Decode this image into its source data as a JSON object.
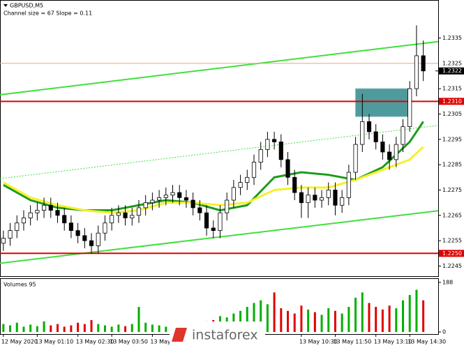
{
  "chart_data": {
    "type": "candlestick",
    "title": "GBPUSD,M5",
    "subtitle": "Channel size = 67 Slope = 0.11",
    "watermark": "instaforex",
    "open": [
      1.2254,
      1.2256,
      1.2259,
      1.2262,
      1.2264,
      1.2266,
      1.2267,
      1.2269,
      1.2267,
      1.2265,
      1.2262,
      1.2259,
      1.2257,
      1.2255,
      1.2253,
      1.2258,
      1.2262,
      1.2265,
      1.2266,
      1.2264,
      1.2265,
      1.2268,
      1.227,
      1.2271,
      1.2272,
      1.2273,
      1.2274,
      1.2272,
      1.2271,
      1.2268,
      1.2266,
      1.226,
      1.2259,
      1.2266,
      1.2271,
      1.2276,
      1.2278,
      1.228,
      1.2286,
      1.2291,
      1.2295,
      1.2294,
      1.2287,
      1.228,
      1.2274,
      1.227,
      1.2273,
      1.2271,
      1.2272,
      1.2275,
      1.2269,
      1.2272,
      1.2282,
      1.2293,
      1.2302,
      1.2298,
      1.2294,
      1.229,
      1.2287,
      1.2293,
      1.23,
      1.2315,
      1.2328
    ],
    "high": [
      1.2259,
      1.2262,
      1.2265,
      1.2267,
      1.2269,
      1.227,
      1.2272,
      1.2272,
      1.227,
      1.2268,
      1.2265,
      1.2262,
      1.226,
      1.2258,
      1.2261,
      1.2265,
      1.2268,
      1.2269,
      1.2269,
      1.2268,
      1.2271,
      1.2273,
      1.2274,
      1.2275,
      1.2276,
      1.2277,
      1.2277,
      1.2275,
      1.2274,
      1.2271,
      1.2269,
      1.2263,
      1.2269,
      1.2274,
      1.2279,
      1.2281,
      1.2283,
      1.2289,
      1.2294,
      1.2298,
      1.2298,
      1.2297,
      1.229,
      1.2283,
      1.2277,
      1.2276,
      1.2276,
      1.2275,
      1.2278,
      1.2278,
      1.2275,
      1.2285,
      1.2296,
      1.2313,
      1.2305,
      1.2301,
      1.2297,
      1.2293,
      1.2296,
      1.2303,
      1.2318,
      1.234,
      1.2334
    ],
    "low": [
      1.2251,
      1.2253,
      1.2256,
      1.2259,
      1.2261,
      1.2263,
      1.2264,
      1.2264,
      1.2262,
      1.2259,
      1.2256,
      1.2254,
      1.2252,
      1.225,
      1.225,
      1.2255,
      1.2259,
      1.2262,
      1.2261,
      1.2261,
      1.2262,
      1.2265,
      1.2267,
      1.2268,
      1.2269,
      1.227,
      1.2269,
      1.2268,
      1.2265,
      1.2263,
      1.2257,
      1.2256,
      1.2256,
      1.2263,
      1.2268,
      1.2273,
      1.2275,
      1.2277,
      1.2283,
      1.2288,
      1.2291,
      1.2284,
      1.2277,
      1.2271,
      1.2264,
      1.2264,
      1.2268,
      1.2268,
      1.2269,
      1.2265,
      1.2266,
      1.2269,
      1.2279,
      1.229,
      1.2295,
      1.2291,
      1.2287,
      1.2283,
      1.2284,
      1.229,
      1.2298,
      1.2312,
      1.2318
    ],
    "close": [
      1.2256,
      1.2259,
      1.2262,
      1.2264,
      1.2266,
      1.2267,
      1.2269,
      1.2267,
      1.2265,
      1.2262,
      1.2259,
      1.2257,
      1.2255,
      1.2253,
      1.2258,
      1.2262,
      1.2265,
      1.2266,
      1.2264,
      1.2265,
      1.2268,
      1.227,
      1.2271,
      1.2272,
      1.2273,
      1.2274,
      1.2272,
      1.2271,
      1.2268,
      1.2266,
      1.226,
      1.2259,
      1.2266,
      1.2271,
      1.2276,
      1.2278,
      1.228,
      1.2286,
      1.2291,
      1.2295,
      1.2294,
      1.2287,
      1.228,
      1.2274,
      1.227,
      1.2273,
      1.2271,
      1.2272,
      1.2275,
      1.2269,
      1.2272,
      1.2282,
      1.2293,
      1.2302,
      1.2298,
      1.2294,
      1.229,
      1.2287,
      1.2293,
      1.23,
      1.2315,
      1.2328,
      1.2322
    ],
    "xlim": [
      -0.5,
      64.2
    ],
    "ylim": [
      1.2241,
      1.235
    ],
    "yticks": [
      1.2335,
      1.2325,
      1.2315,
      1.2305,
      1.2295,
      1.2285,
      1.2275,
      1.2265,
      1.2255,
      1.2245
    ],
    "xticks": [
      {
        "value": 0,
        "label": "12 May 2020"
      },
      {
        "value": 5,
        "label": "13 May 01:10"
      },
      {
        "value": 11,
        "label": "13 May 02:30"
      },
      {
        "value": 16,
        "label": "13 May 03:50"
      },
      {
        "value": 22,
        "label": "13 May"
      },
      {
        "value": 44,
        "label": "13 May 10:30"
      },
      {
        "value": 49,
        "label": "13 May 11:50"
      },
      {
        "value": 55,
        "label": "13 May 13:10"
      },
      {
        "value": 60,
        "label": "13 May 14:30"
      }
    ],
    "moving_averages": [
      {
        "color": "#1e9a1e",
        "x": [
          0,
          4,
          8,
          12,
          16,
          20,
          24,
          28,
          32,
          36,
          40,
          44,
          48,
          52,
          56,
          60,
          62
        ],
        "values": [
          1.2277,
          1.2271,
          1.2268,
          1.2267,
          1.2267,
          1.2269,
          1.2271,
          1.227,
          1.2267,
          1.2269,
          1.228,
          1.2282,
          1.2281,
          1.2279,
          1.2284,
          1.2294,
          1.2302
        ]
      },
      {
        "color": "#f2f22a",
        "x": [
          0,
          4,
          8,
          12,
          16,
          20,
          24,
          28,
          32,
          36,
          40,
          44,
          48,
          52,
          56,
          60,
          62
        ],
        "values": [
          1.2278,
          1.2272,
          1.2269,
          1.2267,
          1.2266,
          1.2267,
          1.227,
          1.227,
          1.2269,
          1.227,
          1.2275,
          1.2276,
          1.2276,
          1.2279,
          1.2283,
          1.2287,
          1.2292
        ]
      }
    ],
    "channel": {
      "color": "#3ee03e",
      "upper": [
        1.23126,
        1.23336
      ],
      "middle": [
        1.22795,
        1.23005
      ],
      "lower": [
        1.22461,
        1.22668
      ]
    },
    "levels": [
      {
        "value": 1.2325,
        "label": "1.2325",
        "color": "#f0a070"
      },
      {
        "value": 1.231,
        "label": "1.2310",
        "color": "#e00000"
      },
      {
        "value": 1.225,
        "label": "1.2250",
        "color": "#e00000"
      }
    ],
    "current_price": 1.2322,
    "box": {
      "x": [
        52,
        60
      ],
      "y": [
        1.2304,
        1.2315
      ],
      "color": "#4f9a9c"
    },
    "volume": {
      "title": "Volumes 95",
      "values": [
        30,
        25,
        35,
        20,
        28,
        22,
        40,
        25,
        30,
        20,
        25,
        35,
        30,
        45,
        30,
        25,
        20,
        28,
        22,
        30,
        95,
        35,
        28,
        25,
        20,
        30,
        25,
        28,
        20,
        35,
        40,
        45,
        60,
        55,
        70,
        80,
        95,
        110,
        120,
        105,
        150,
        90,
        80,
        70,
        100,
        85,
        75,
        65,
        90,
        80,
        70,
        95,
        130,
        150,
        110,
        95,
        85,
        100,
        90,
        120,
        140,
        160,
        120
      ],
      "ylim": [
        0,
        201
      ],
      "yticks": [
        188,
        0
      ]
    }
  }
}
